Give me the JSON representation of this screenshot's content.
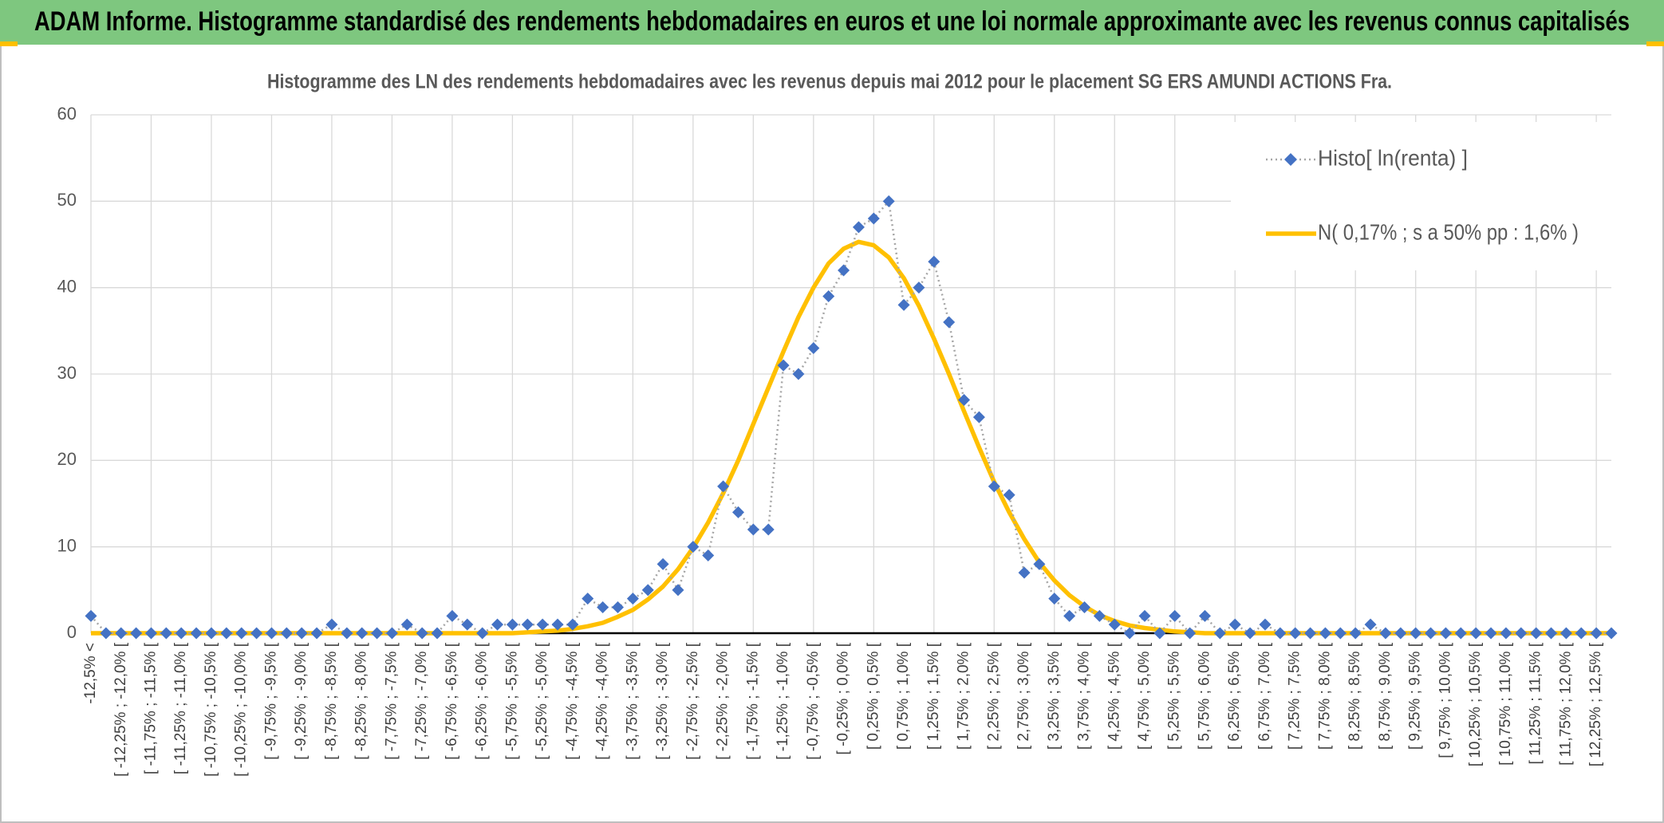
{
  "banner": "ADAM Informe. Histogramme standardisé des rendements hebdomadaires en euros et une loi normale approximante avec les revenus connus capitalisés",
  "chart_data": {
    "type": "line",
    "title": "Histogramme des LN des rendements hebdomadaires avec les revenus depuis mai 2012 pour le placement SG ERS AMUNDI ACTIONS Fra.",
    "categories": [
      "-12,5% <",
      null,
      "[ -12,25% ; -12,0% [",
      null,
      "[ -11,75% ; -11,5% [",
      null,
      "[ -11,25% ; -11,0% [",
      null,
      "[ -10,75% ; -10,5% [",
      null,
      "[ -10,25% ; -10,0% [",
      null,
      "[ -9,75% ; -9,5% [",
      null,
      "[ -9,25% ; -9,0% [",
      null,
      "[ -8,75% ; -8,5% [",
      null,
      "[ -8,25% ; -8,0% [",
      null,
      "[ -7,75% ; -7,5% [",
      null,
      "[ -7,25% ; -7,0% [",
      null,
      "[ -6,75% ; -6,5% [",
      null,
      "[ -6,25% ; -6,0% [",
      null,
      "[ -5,75% ; -5,5% [",
      null,
      "[ -5,25% ; -5,0% [",
      null,
      "[ -4,75% ; -4,5% [",
      null,
      "[ -4,25% ; -4,0% [",
      null,
      "[ -3,75% ; -3,5% [",
      null,
      "[ -3,25% ; -3,0% [",
      null,
      "[ -2,75% ; -2,5% [",
      null,
      "[ -2,25% ; -2,0% [",
      null,
      "[ -1,75% ; -1,5% [",
      null,
      "[ -1,25% ; -1,0% [",
      null,
      "[ -0,75% ; -0,5% [",
      null,
      "[ -0,25% ; 0,0% [",
      null,
      "[ 0,25% ; 0,5% [",
      null,
      "[ 0,75% ; 1,0% [",
      null,
      "[ 1,25% ; 1,5% [",
      null,
      "[ 1,75% ; 2,0% [",
      null,
      "[ 2,25% ; 2,5% [",
      null,
      "[ 2,75% ; 3,0% [",
      null,
      "[ 3,25% ; 3,5% [",
      null,
      "[ 3,75% ; 4,0% [",
      null,
      "[ 4,25% ; 4,5% [",
      null,
      "[ 4,75% ; 5,0% [",
      null,
      "[ 5,25% ; 5,5% [",
      null,
      "[ 5,75% ; 6,0% [",
      null,
      "[ 6,25% ; 6,5% [",
      null,
      "[ 6,75% ; 7,0% [",
      null,
      "[ 7,25% ; 7,5% [",
      null,
      "[ 7,75% ; 8,0% [",
      null,
      "[ 8,25% ; 8,5% [",
      null,
      "[ 8,75% ; 9,0% [",
      null,
      "[ 9,25% ; 9,5% [",
      null,
      "[ 9,75% ; 10,0% [",
      null,
      "[ 10,25% ; 10,5% [",
      null,
      "[ 10,75% ; 11,0% [",
      null,
      "[ 11,25% ; 11,5% [",
      null,
      "[ 11,75% ; 12,0% [",
      null,
      "[ 12,25% ; 12,5% [",
      null
    ],
    "series": [
      {
        "name": "Histo[ ln(renta) ]",
        "color": "#4472c4",
        "line_color": "#a6a6a6",
        "marker": "diamond",
        "line_style": "dotted",
        "values": [
          2,
          0,
          0,
          0,
          0,
          0,
          0,
          0,
          0,
          0,
          0,
          0,
          0,
          0,
          0,
          0,
          1,
          0,
          0,
          0,
          0,
          1,
          0,
          0,
          2,
          1,
          0,
          1,
          1,
          1,
          1,
          1,
          1,
          4,
          3,
          3,
          4,
          5,
          8,
          5,
          10,
          9,
          17,
          14,
          12,
          12,
          31,
          30,
          33,
          39,
          42,
          47,
          48,
          50,
          38,
          40,
          43,
          36,
          27,
          25,
          17,
          16,
          7,
          8,
          4,
          2,
          3,
          2,
          1,
          0,
          2,
          0,
          2,
          0,
          2,
          0,
          1,
          0,
          1,
          0,
          0,
          0,
          0,
          0,
          0,
          1,
          0,
          0,
          0,
          0,
          0,
          0,
          0,
          0,
          0,
          0,
          0,
          0,
          0,
          0,
          0,
          0
        ]
      },
      {
        "name": "N( 0,17% ; s a 50% pp : 1,6% )",
        "color": "#ffc000",
        "marker": "none",
        "line_style": "solid",
        "values": [
          0,
          0,
          0,
          0,
          0,
          0,
          0,
          0,
          0,
          0,
          0,
          0,
          0,
          0,
          0,
          0,
          0,
          0,
          0,
          0,
          0,
          0,
          0,
          0,
          0,
          0,
          0,
          0,
          0,
          0.1,
          0.2,
          0.3,
          0.5,
          0.8,
          1.2,
          1.9,
          2.7,
          3.9,
          5.4,
          7.4,
          9.9,
          12.8,
          16.2,
          20.0,
          24.2,
          28.4,
          32.6,
          36.6,
          40.0,
          42.8,
          44.5,
          45.3,
          44.9,
          43.5,
          41.1,
          37.9,
          34.1,
          30.0,
          25.7,
          21.5,
          17.5,
          14.0,
          10.9,
          8.2,
          6.1,
          4.4,
          3.1,
          2.1,
          1.4,
          0.9,
          0.6,
          0.4,
          0.2,
          0.1,
          0,
          0,
          0,
          0,
          0,
          0,
          0,
          0,
          0,
          0,
          0,
          0,
          0,
          0,
          0,
          0,
          0,
          0,
          0,
          0,
          0,
          0,
          0,
          0,
          0,
          0,
          0,
          0
        ]
      }
    ],
    "ylim": [
      0,
      60
    ],
    "yticks": [
      0,
      10,
      20,
      30,
      40,
      50,
      60
    ],
    "grid": true,
    "legend": "top-right"
  }
}
